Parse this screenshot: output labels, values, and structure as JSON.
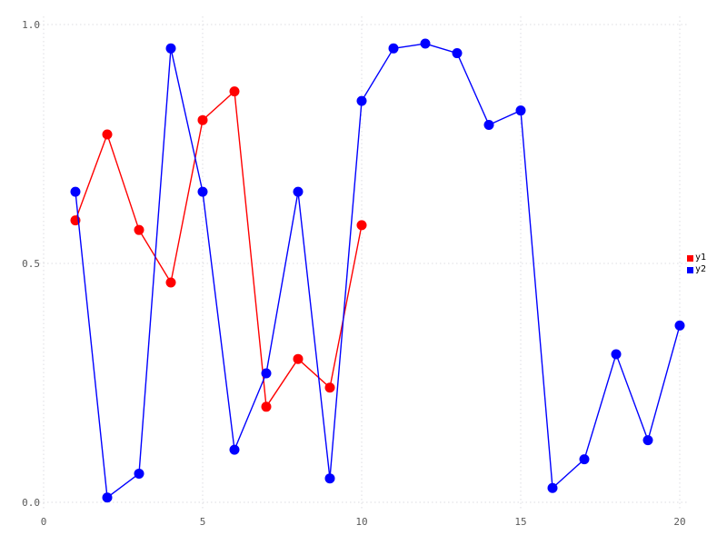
{
  "chart_data": {
    "type": "line",
    "title": "",
    "xlabel": "",
    "ylabel": "",
    "xlim": [
      0,
      20
    ],
    "ylim": [
      0.0,
      1.0
    ],
    "grid": true,
    "grid_color": "#dcdce2",
    "background_color": "#ffffff",
    "tick_label_color": "#5a5a5a",
    "legend_position": "right",
    "x_ticks": [
      0,
      5,
      10,
      15,
      20
    ],
    "x_tick_labels": [
      "0",
      "5",
      "10",
      "15",
      "20"
    ],
    "y_ticks": [
      0.0,
      0.5,
      1.0
    ],
    "y_tick_labels": [
      "0.0",
      "0.5",
      "1.0"
    ],
    "series": [
      {
        "name": "y1",
        "color": "#ff0000",
        "marker": "filled-circle",
        "x": [
          1,
          2,
          3,
          4,
          5,
          6,
          7,
          8,
          9,
          10
        ],
        "y": [
          0.59,
          0.77,
          0.57,
          0.46,
          0.8,
          0.86,
          0.2,
          0.3,
          0.24,
          0.58
        ]
      },
      {
        "name": "y2",
        "color": "#0000ff",
        "marker": "filled-circle",
        "x": [
          1,
          2,
          3,
          4,
          5,
          6,
          7,
          8,
          9,
          10,
          11,
          12,
          13,
          14,
          15,
          16,
          17,
          18,
          19,
          20
        ],
        "y": [
          0.65,
          0.01,
          0.06,
          0.95,
          0.65,
          0.11,
          0.27,
          0.65,
          0.05,
          0.84,
          0.95,
          0.96,
          0.94,
          0.79,
          0.82,
          0.03,
          0.09,
          0.31,
          0.13,
          0.37
        ]
      }
    ]
  }
}
